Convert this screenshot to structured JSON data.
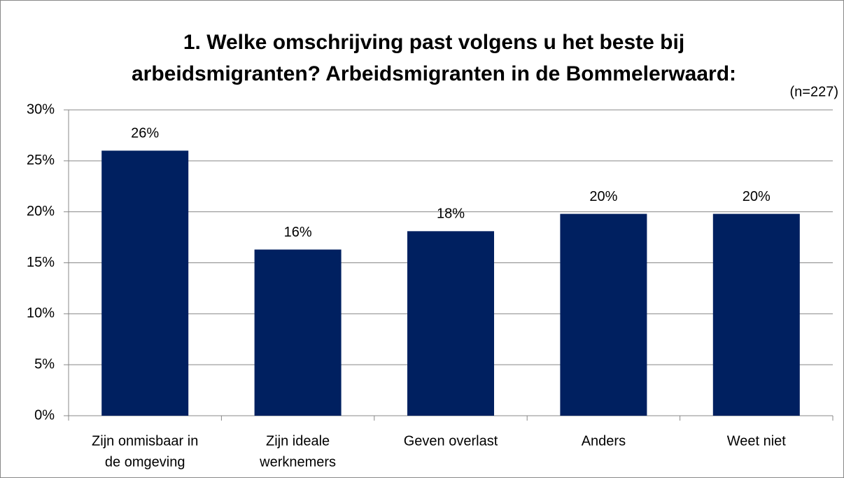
{
  "chart_data": {
    "type": "bar",
    "title": [
      "1. Welke omschrijving past volgens u het beste bij",
      "arbeidsmigranten? Arbeidsmigranten in de Bommelerwaard:"
    ],
    "subtitle": "(n=227)",
    "categories": [
      [
        "Zijn onmisbaar in",
        "de omgeving"
      ],
      [
        "Zijn ideale",
        "werknemers"
      ],
      [
        "Geven overlast"
      ],
      [
        "Anders"
      ],
      [
        "Weet niet"
      ]
    ],
    "values": [
      26,
      16.3,
      18.1,
      19.8,
      19.8
    ],
    "value_labels": [
      "26%",
      "16%",
      "18%",
      "20%",
      "20%"
    ],
    "color": "#002060",
    "ylim": [
      0,
      30
    ],
    "yticks": [
      {
        "value": 0,
        "label": "0%"
      },
      {
        "value": 5,
        "label": "5%"
      },
      {
        "value": 10,
        "label": "10%"
      },
      {
        "value": 15,
        "label": "15%"
      },
      {
        "value": 20,
        "label": "20%"
      },
      {
        "value": 25,
        "label": "25%"
      },
      {
        "value": 30,
        "label": "30%"
      }
    ],
    "grid": true
  }
}
